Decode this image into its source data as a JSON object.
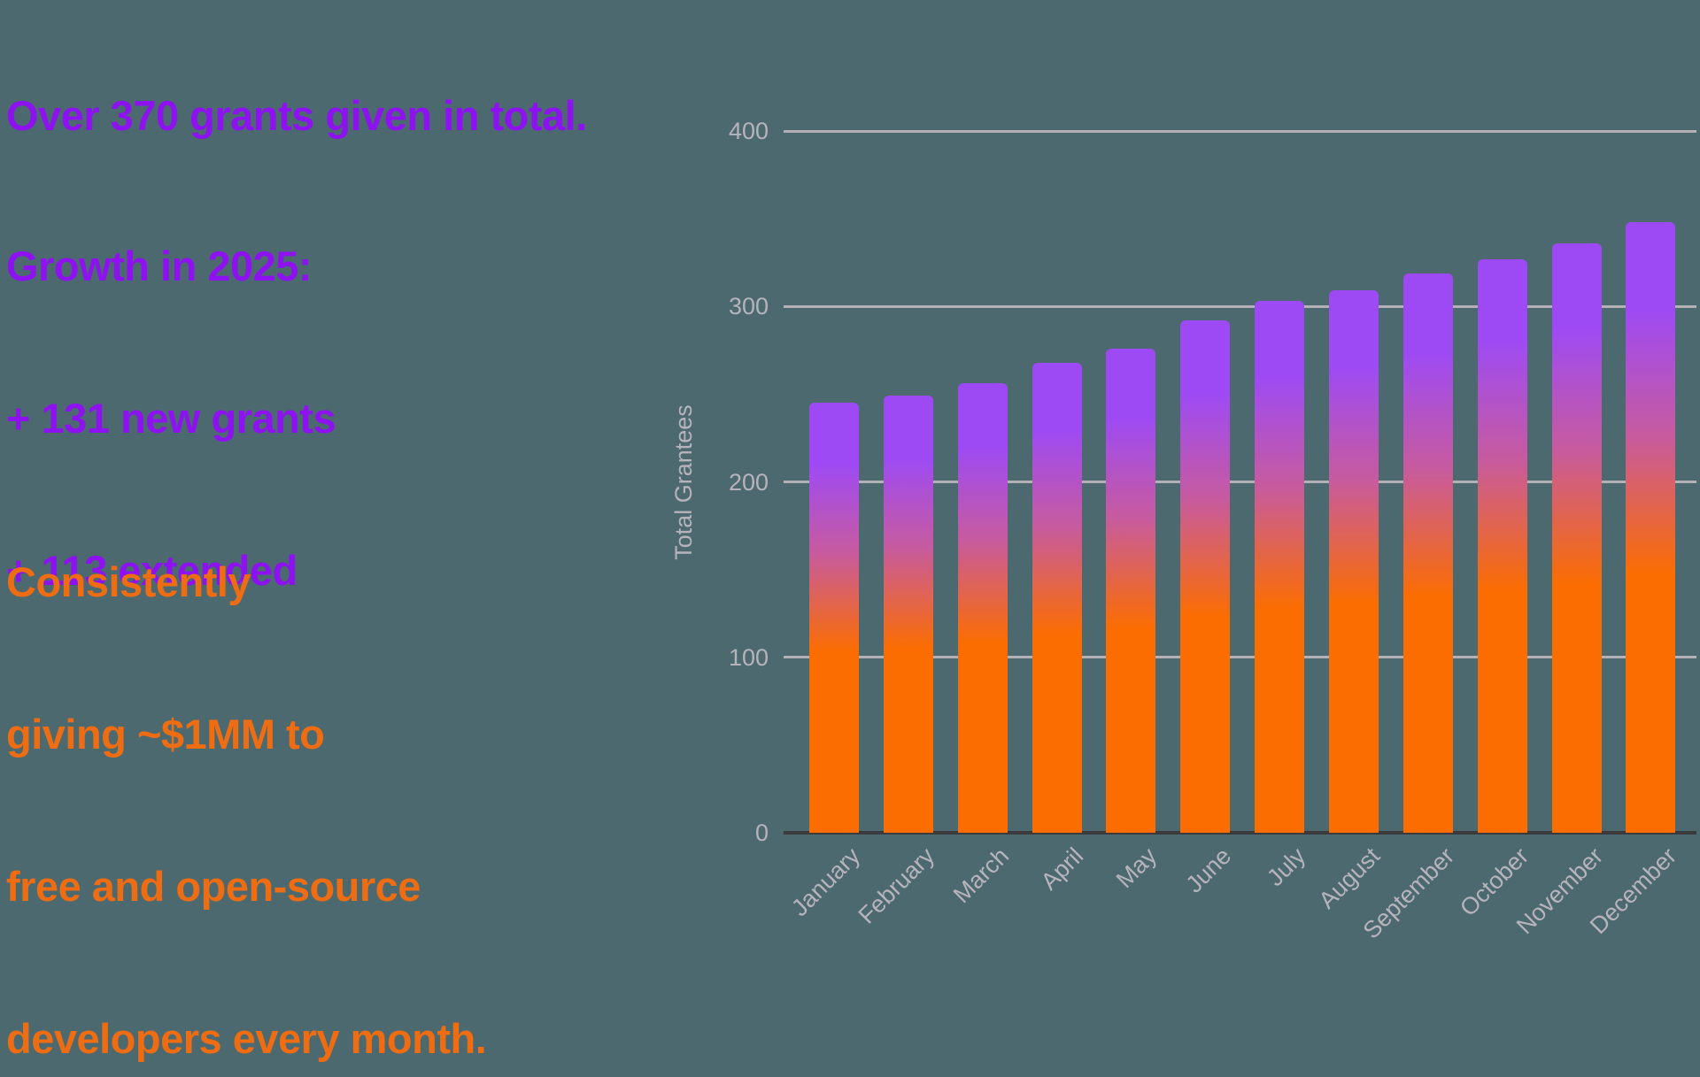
{
  "page": {
    "background": "#4c6970"
  },
  "left_panel": {
    "headline": "Over 370 grants given in total.",
    "headline_color": "#8e11f2",
    "growth": {
      "title": "Growth in 2025:",
      "line1": "+ 131 new grants",
      "line2": "+ 113 extended",
      "color": "#8e11f2"
    },
    "giving": {
      "line1": "Consistently",
      "line2": "giving ~$1MM to",
      "line3": "free and open-source",
      "line4": "developers every month.",
      "color": "#ee6c12"
    }
  },
  "chart_data": {
    "type": "bar",
    "title": "",
    "xlabel": "",
    "ylabel": "Total Grantees",
    "categories": [
      "January",
      "February",
      "March",
      "April",
      "May",
      "June",
      "July",
      "August",
      "September",
      "October",
      "November",
      "December"
    ],
    "values": [
      245,
      249,
      256,
      268,
      276,
      292,
      303,
      309,
      319,
      327,
      336,
      348
    ],
    "ylim": [
      0,
      400
    ],
    "yticks": [
      0,
      100,
      200,
      300,
      400
    ],
    "grid": "horizontal-only",
    "legend": "none",
    "xtick_rotation_deg": 45,
    "colors": {
      "bar_gradient_top_purple": "#9d4af5",
      "bar_gradient_mid_pink": "#c75b9e",
      "bar_gradient_bottom_orange": "#fb6d00",
      "gridline": "#b3b0b6",
      "zero_axis_line": "#3b3b3d",
      "tick_label": "#b6b3bb"
    }
  }
}
